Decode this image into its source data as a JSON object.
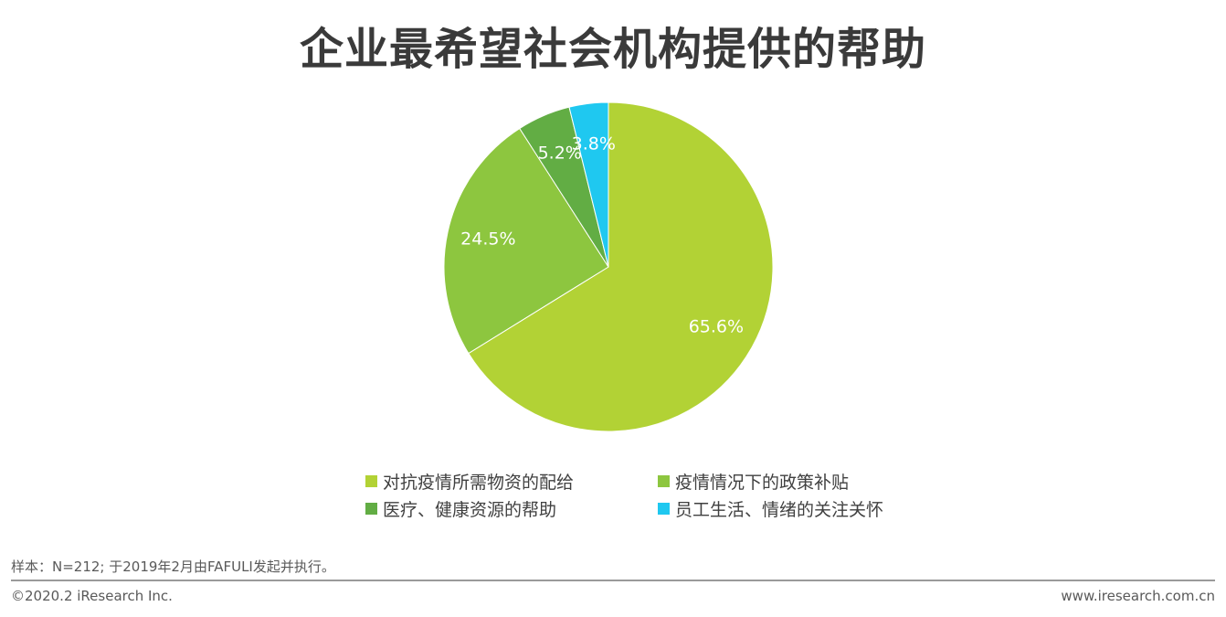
{
  "title": "企业最希望社会机构提供的帮助",
  "chart_data": {
    "type": "pie",
    "title": "企业最希望社会机构提供的帮助",
    "slices": [
      {
        "label": "对抗疫情所需物资的配给",
        "value": 65.6,
        "display": "65.6%",
        "color": "#b2d235"
      },
      {
        "label": "疫情情况下的政策补贴",
        "value": 24.5,
        "display": "24.5%",
        "color": "#8dc63f"
      },
      {
        "label": "医疗、健康资源的帮助",
        "value": 5.2,
        "display": "5.2%",
        "color": "#62ad44"
      },
      {
        "label": "员工生活、情绪的关注关怀",
        "value": 3.8,
        "display": "3.8%",
        "color": "#1fc8f0"
      }
    ],
    "start_angle_deg": 0,
    "direction": "clockwise",
    "legend_position": "bottom"
  },
  "legend": {
    "items": [
      {
        "label": "对抗疫情所需物资的配给",
        "color": "#b2d235"
      },
      {
        "label": "疫情情况下的政策补贴",
        "color": "#8dc63f"
      },
      {
        "label": "医疗、健康资源的帮助",
        "color": "#62ad44"
      },
      {
        "label": "员工生活、情绪的关注关怀",
        "color": "#1fc8f0"
      }
    ]
  },
  "footer": {
    "note": "样本：N=212; 于2019年2月由FAFULI发起并执行。",
    "copyright": "©2020.2 iResearch Inc.",
    "website": "www.iresearch.com.cn"
  }
}
